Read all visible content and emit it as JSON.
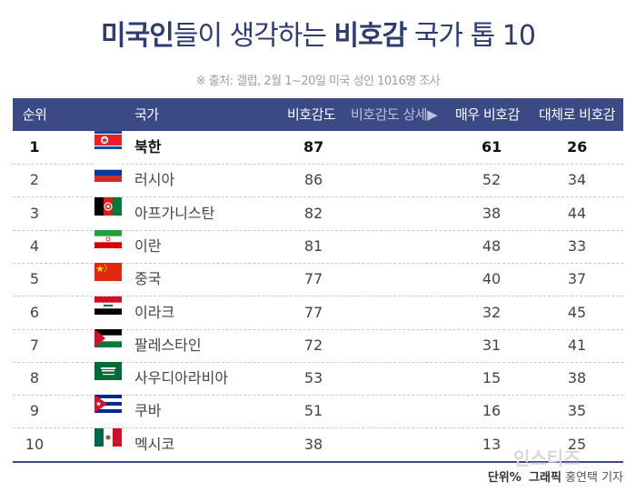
{
  "title": {
    "part1": "미국인",
    "part2": "들이 생각하는 ",
    "part3": "비호감",
    "part4": " 국가 톱 10"
  },
  "source": "※ 출처: 갤럽, 2월 1~20일 미국 성인 1016명 조사",
  "credit": {
    "unit_label": "단위%",
    "graphic_label": "그래픽",
    "author": "홍연택 기자"
  },
  "watermark": "인스티즈",
  "colors": {
    "header_bg": "#3b4a85",
    "title": "#2f3c72"
  },
  "chart_data": {
    "type": "table",
    "title": "미국인들이 생각하는 비호감 국가 톱 10",
    "columns": [
      "순위",
      "국가",
      "비호감도",
      "비호감도 상세▶",
      "매우 비호감",
      "대체로 비호감"
    ],
    "rows": [
      {
        "rank": "1",
        "country": "북한",
        "flag": "north-korea",
        "unfavorable": 87,
        "very": 61,
        "mostly": 26
      },
      {
        "rank": "2",
        "country": "러시아",
        "flag": "russia",
        "unfavorable": 86,
        "very": 52,
        "mostly": 34
      },
      {
        "rank": "3",
        "country": "아프가니스탄",
        "flag": "afghanistan",
        "unfavorable": 82,
        "very": 38,
        "mostly": 44
      },
      {
        "rank": "4",
        "country": "이란",
        "flag": "iran",
        "unfavorable": 81,
        "very": 48,
        "mostly": 33
      },
      {
        "rank": "5",
        "country": "중국",
        "flag": "china",
        "unfavorable": 77,
        "very": 40,
        "mostly": 37
      },
      {
        "rank": "6",
        "country": "이라크",
        "flag": "iraq",
        "unfavorable": 77,
        "very": 32,
        "mostly": 45
      },
      {
        "rank": "7",
        "country": "팔레스타인",
        "flag": "palestine",
        "unfavorable": 72,
        "very": 31,
        "mostly": 41
      },
      {
        "rank": "8",
        "country": "사우디아라비아",
        "flag": "saudi-arabia",
        "unfavorable": 53,
        "very": 15,
        "mostly": 38
      },
      {
        "rank": "9",
        "country": "쿠바",
        "flag": "cuba",
        "unfavorable": 51,
        "very": 16,
        "mostly": 35
      },
      {
        "rank": "10",
        "country": "멕시코",
        "flag": "mexico",
        "unfavorable": 38,
        "very": 13,
        "mostly": 25
      }
    ]
  }
}
